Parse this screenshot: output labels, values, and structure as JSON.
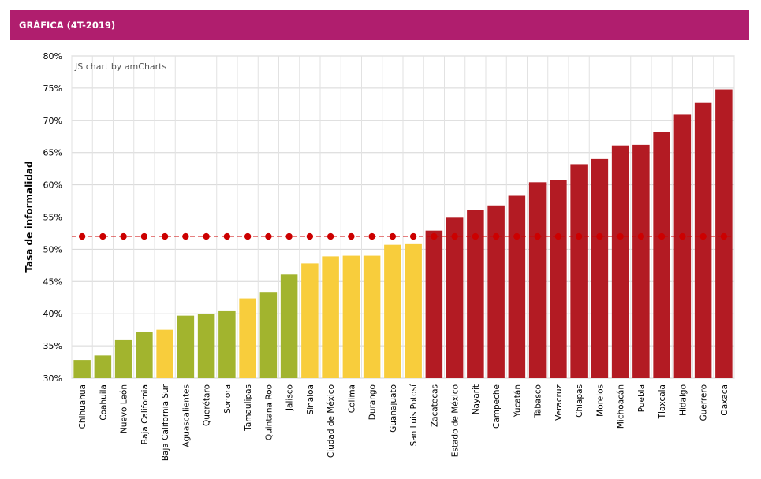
{
  "header": {
    "title": "GRÁFICA (4T-2019)"
  },
  "chart_data": {
    "type": "bar",
    "credit": "JS chart by amCharts",
    "ylabel": "Tasa de informalidad",
    "xlabel": "",
    "ylim": [
      30,
      80
    ],
    "ytick_step": 5,
    "ytick_suffix": "%",
    "grid": true,
    "categories": [
      "Chihuahua",
      "Coahuila",
      "Nuevo León",
      "Baja California",
      "Baja California Sur",
      "Aguascalientes",
      "Querétaro",
      "Sonora",
      "Tamaulipas",
      "Quintana Roo",
      "Jalisco",
      "Sinaloa",
      "Ciudad de México",
      "Colima",
      "Durango",
      "Guanajuato",
      "San Luis Potosí",
      "Zacatecas",
      "Estado de México",
      "Nayarit",
      "Campeche",
      "Yucatán",
      "Tabasco",
      "Veracruz",
      "Chiapas",
      "Morelos",
      "Michoacán",
      "Puebla",
      "Tlaxcala",
      "Hidalgo",
      "Guerrero",
      "Oaxaca"
    ],
    "values": [
      32.8,
      33.5,
      36.0,
      37.1,
      37.5,
      39.7,
      40.0,
      40.4,
      42.4,
      43.3,
      46.1,
      47.8,
      48.9,
      49.0,
      49.0,
      50.7,
      50.8,
      52.9,
      54.9,
      56.1,
      56.8,
      58.3,
      60.4,
      60.8,
      63.2,
      64.0,
      66.1,
      66.2,
      68.2,
      70.9,
      72.7,
      74.8
    ],
    "bar_colors": [
      "#a2b42e",
      "#a2b42e",
      "#a2b42e",
      "#a2b42e",
      "#f8cd3c",
      "#a2b42e",
      "#a2b42e",
      "#a2b42e",
      "#f8cd3c",
      "#a2b42e",
      "#a2b42e",
      "#f8cd3c",
      "#f8cd3c",
      "#f8cd3c",
      "#f8cd3c",
      "#f8cd3c",
      "#f8cd3c",
      "#b31b23",
      "#b31b23",
      "#b31b23",
      "#b31b23",
      "#b31b23",
      "#b31b23",
      "#b31b23",
      "#b31b23",
      "#b31b23",
      "#b31b23",
      "#b31b23",
      "#b31b23",
      "#b31b23",
      "#b31b23",
      "#b31b23"
    ],
    "reference_line": {
      "value": 52.0,
      "color": "#cc0000",
      "style": "dashed",
      "markers": "dot"
    }
  }
}
